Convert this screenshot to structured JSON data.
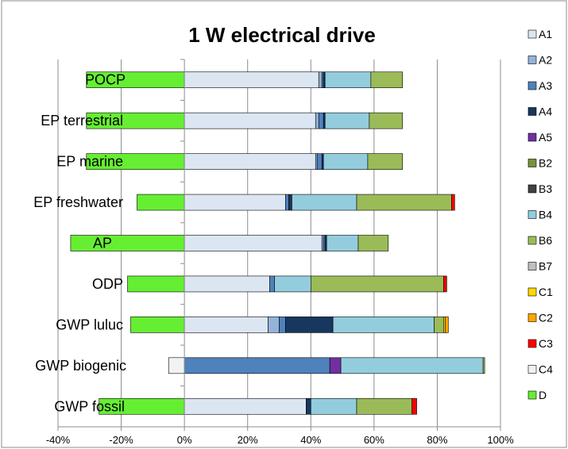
{
  "chart_data": {
    "type": "bar",
    "orientation": "horizontal",
    "stacked": true,
    "title": "1 W electrical drive",
    "xlabel": "",
    "ylabel": "",
    "xlim": [
      -40,
      100
    ],
    "x_ticks": [
      "-40%",
      "-20%",
      "0%",
      "20%",
      "40%",
      "60%",
      "80%",
      "100%"
    ],
    "x_tick_values": [
      -40,
      -20,
      0,
      20,
      40,
      60,
      80,
      100
    ],
    "grid": "vertical",
    "legend_position": "right",
    "categories": [
      "POCP",
      "EP terrestrial",
      "EP marine",
      "EP freshwater",
      "AP",
      "ODP",
      "GWP luluc",
      "GWP biogenic",
      "GWP fossil"
    ],
    "series": [
      {
        "name": "A1",
        "color": "#dce6f2",
        "values": [
          42.5,
          41.5,
          41.5,
          32,
          43.5,
          27,
          26.5,
          0,
          38.5
        ]
      },
      {
        "name": "A2",
        "color": "#95b3d7",
        "values": [
          1,
          1,
          0.5,
          0,
          0.5,
          0,
          3.5,
          0,
          0
        ]
      },
      {
        "name": "A3",
        "color": "#4f81bd",
        "values": [
          0.5,
          1.5,
          1.5,
          1,
          0.5,
          1.5,
          2,
          46,
          0
        ]
      },
      {
        "name": "A4",
        "color": "#17375e",
        "values": [
          0.5,
          0.5,
          0.5,
          1,
          0.5,
          0,
          15,
          0,
          1.5
        ]
      },
      {
        "name": "A5",
        "color": "#7030a0",
        "values": [
          0,
          0,
          0,
          0,
          0,
          0,
          0,
          3.5,
          0
        ]
      },
      {
        "name": "B2",
        "color": "#77933c",
        "values": [
          0,
          0,
          0,
          0,
          0,
          0,
          0,
          0,
          0
        ]
      },
      {
        "name": "B3",
        "color": "#404040",
        "values": [
          0,
          0,
          0,
          0,
          0,
          0,
          0,
          0,
          0
        ]
      },
      {
        "name": "B4",
        "color": "#93cddd",
        "values": [
          14.5,
          14,
          14,
          20.5,
          10,
          11.5,
          32,
          45,
          14.5
        ]
      },
      {
        "name": "B6",
        "color": "#9bbb59",
        "values": [
          10,
          10.5,
          11,
          30,
          9.5,
          42,
          3,
          0.5,
          17.5
        ]
      },
      {
        "name": "B7",
        "color": "#bfbfbf",
        "values": [
          0,
          0,
          0,
          0,
          0,
          0,
          0,
          0,
          0
        ]
      },
      {
        "name": "C1",
        "color": "#ffd700",
        "values": [
          0,
          0,
          0,
          0,
          0,
          0,
          0.5,
          0,
          0
        ]
      },
      {
        "name": "C2",
        "color": "#ffa500",
        "values": [
          0,
          0,
          0,
          0,
          0,
          0,
          1,
          0,
          0
        ]
      },
      {
        "name": "C3",
        "color": "#ff0000",
        "values": [
          0,
          0,
          0,
          1,
          0,
          1,
          0,
          0,
          1.5
        ]
      },
      {
        "name": "C4",
        "color": "#f2f2f2",
        "values": [
          0,
          0,
          0,
          0,
          0,
          0,
          0,
          -5,
          0
        ]
      },
      {
        "name": "D",
        "color": "#66ee33",
        "values": [
          -31,
          -31,
          -31,
          -15,
          -36,
          -18,
          -17,
          0,
          -27
        ]
      }
    ]
  }
}
